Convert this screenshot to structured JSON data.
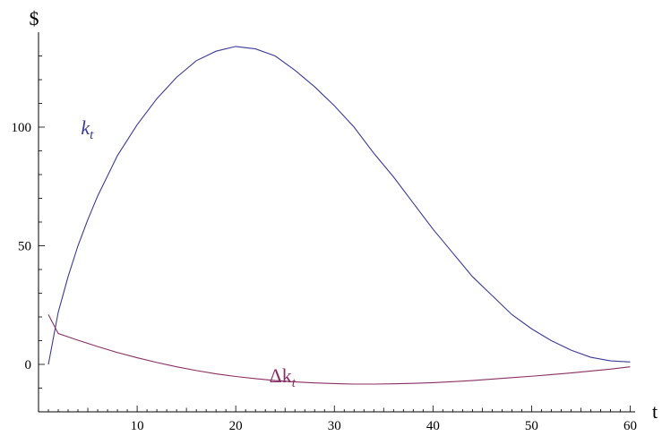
{
  "chart_data": {
    "type": "line",
    "title": "",
    "xlabel": "t",
    "ylabel": "$",
    "xlim": [
      0,
      60.5
    ],
    "ylim": [
      -20,
      140
    ],
    "x_ticks": [
      10,
      20,
      30,
      40,
      50,
      60
    ],
    "y_ticks": [
      0,
      50,
      100
    ],
    "x_tick_labels": [
      "10",
      "20",
      "30",
      "40",
      "50",
      "60"
    ],
    "y_tick_labels": [
      "0",
      "50",
      "100"
    ],
    "grid": false,
    "series": [
      {
        "name": "k",
        "name_subscript": "t",
        "color": "#3b3b9a",
        "label_at": [
          4.3,
          97
        ],
        "x": [
          1,
          2,
          3,
          4,
          5,
          6,
          8,
          10,
          12,
          14,
          16,
          18,
          20,
          22,
          24,
          26,
          28,
          30,
          32,
          34,
          36,
          38,
          40,
          42,
          44,
          46,
          48,
          50,
          52,
          54,
          56,
          58,
          60
        ],
        "y": [
          0,
          22,
          37,
          50,
          61,
          71,
          88,
          101,
          112,
          121,
          128,
          132,
          134,
          133,
          130,
          124,
          117,
          109,
          100,
          89,
          79,
          68,
          57,
          47,
          37,
          29,
          21,
          15,
          10,
          6,
          3,
          1.5,
          1
        ]
      },
      {
        "name": "Δk",
        "name_subscript": "t",
        "color": "#8b2f63",
        "label_at": [
          23.4,
          -7.5
        ],
        "x": [
          1,
          2,
          4,
          6,
          8,
          10,
          12,
          14,
          16,
          18,
          20,
          22,
          24,
          26,
          28,
          30,
          32,
          34,
          36,
          38,
          40,
          42,
          44,
          46,
          48,
          50,
          52,
          54,
          56,
          58,
          60
        ],
        "y": [
          21,
          13,
          10.2,
          7.5,
          5,
          2.8,
          0.8,
          -1,
          -2.6,
          -4,
          -5.1,
          -6,
          -6.8,
          -7.4,
          -7.8,
          -8.1,
          -8.3,
          -8.3,
          -8.2,
          -8,
          -7.7,
          -7.3,
          -6.8,
          -6.2,
          -5.6,
          -5,
          -4.3,
          -3.6,
          -2.8,
          -2,
          -1
        ]
      }
    ]
  }
}
